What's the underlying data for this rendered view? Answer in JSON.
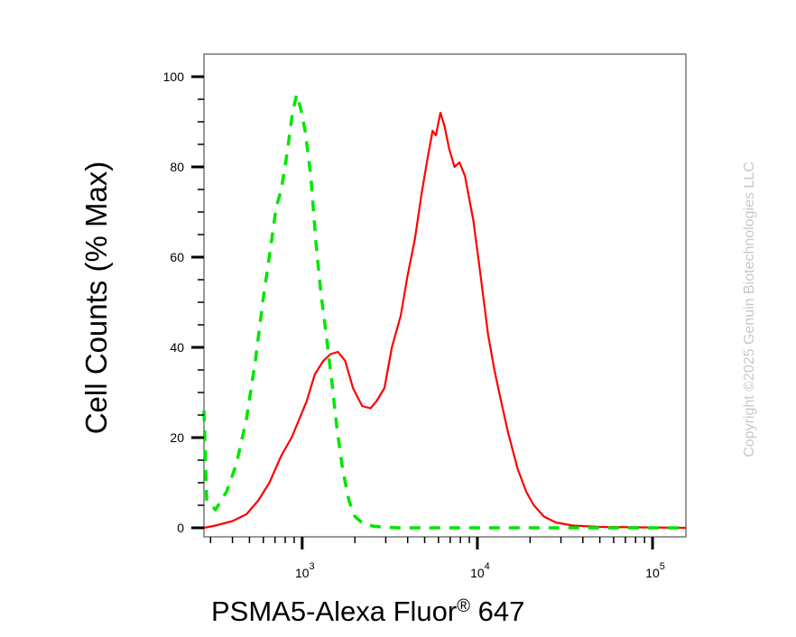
{
  "chart_data": {
    "type": "line",
    "title": "",
    "xlabel": {
      "main": "PSMA5-Alexa Fluor",
      "sup": "®",
      "tail": " 647"
    },
    "ylabel": "Cell Counts (% Max)",
    "x_scale": "log",
    "xlim": [
      275,
      155000
    ],
    "ylim": [
      -2,
      105
    ],
    "y_ticks": [
      0,
      20,
      40,
      60,
      80,
      100
    ],
    "y_tick_labels": [
      "0",
      "20",
      "40",
      "60",
      "80",
      "100"
    ],
    "x_ticks": [
      {
        "value": 1000,
        "base": "10",
        "exp": "3"
      },
      {
        "value": 10000,
        "base": "10",
        "exp": "4"
      },
      {
        "value": 100000,
        "base": "10",
        "exp": "5"
      }
    ],
    "grid": false,
    "legend": "none",
    "copyright": "Copyright ©2025 Genuin Biotechnologies LLC",
    "series": [
      {
        "color": "#ff0000",
        "style": "solid",
        "points": [
          [
            275,
            0
          ],
          [
            320,
            0.5
          ],
          [
            400,
            1.5
          ],
          [
            480,
            3
          ],
          [
            560,
            6
          ],
          [
            650,
            10
          ],
          [
            760,
            16
          ],
          [
            870,
            20
          ],
          [
            960,
            24
          ],
          [
            1060,
            28
          ],
          [
            1180,
            34
          ],
          [
            1320,
            37
          ],
          [
            1450,
            38.5
          ],
          [
            1600,
            39
          ],
          [
            1760,
            37
          ],
          [
            1950,
            31
          ],
          [
            2200,
            27
          ],
          [
            2450,
            26.5
          ],
          [
            2650,
            28
          ],
          [
            2950,
            31
          ],
          [
            3250,
            40
          ],
          [
            3650,
            47
          ],
          [
            4000,
            56
          ],
          [
            4400,
            64
          ],
          [
            4800,
            74
          ],
          [
            5200,
            82
          ],
          [
            5550,
            88
          ],
          [
            5800,
            87
          ],
          [
            6150,
            92
          ],
          [
            6500,
            89
          ],
          [
            6900,
            84
          ],
          [
            7400,
            80
          ],
          [
            7900,
            81
          ],
          [
            8500,
            78
          ],
          [
            9500,
            68
          ],
          [
            10500,
            55
          ],
          [
            11500,
            43
          ],
          [
            12500,
            35
          ],
          [
            13500,
            29
          ],
          [
            15000,
            21
          ],
          [
            17000,
            13
          ],
          [
            19000,
            8
          ],
          [
            21000,
            5
          ],
          [
            24000,
            2.5
          ],
          [
            28000,
            1.2
          ],
          [
            35000,
            0.5
          ],
          [
            50000,
            0.2
          ],
          [
            155000,
            0
          ]
        ]
      },
      {
        "color": "#00e600",
        "style": "dashed",
        "points": [
          [
            275,
            26
          ],
          [
            285,
            6
          ],
          [
            320,
            4
          ],
          [
            370,
            8
          ],
          [
            420,
            14
          ],
          [
            480,
            24
          ],
          [
            540,
            37
          ],
          [
            600,
            51
          ],
          [
            660,
            62
          ],
          [
            710,
            71
          ],
          [
            760,
            75
          ],
          [
            820,
            83
          ],
          [
            880,
            92
          ],
          [
            930,
            96
          ],
          [
            980,
            93
          ],
          [
            1040,
            88
          ],
          [
            1120,
            78
          ],
          [
            1200,
            63
          ],
          [
            1280,
            52
          ],
          [
            1380,
            42
          ],
          [
            1480,
            32
          ],
          [
            1580,
            22
          ],
          [
            1700,
            13
          ],
          [
            1850,
            6
          ],
          [
            2000,
            2.5
          ],
          [
            2250,
            0.8
          ],
          [
            2600,
            0.3
          ],
          [
            3500,
            0
          ],
          [
            155000,
            0
          ]
        ]
      }
    ]
  }
}
